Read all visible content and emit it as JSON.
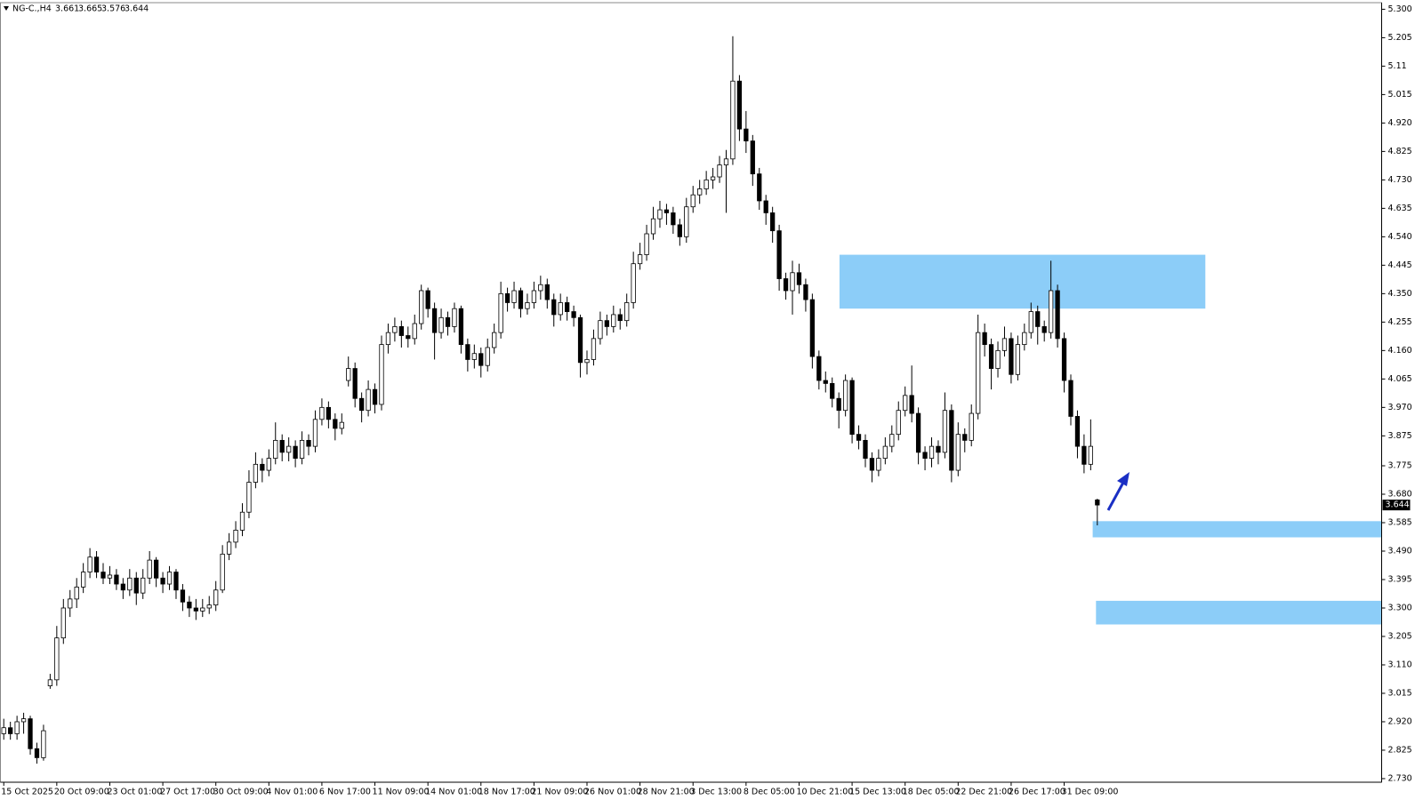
{
  "chart_data": {
    "type": "candlestick",
    "title": "NG-C.,H4",
    "up_color": "#ffffff",
    "down_color": "#000000",
    "outline_color": "#000000",
    "zone_color": "#8ccdf8",
    "xlim": [
      -0.5,
      207.9
    ],
    "ylim": [
      2.718,
      5.322
    ],
    "xticks": [
      {
        "value": 0,
        "label": "15 Oct 2025"
      },
      {
        "value": 8,
        "label": "20 Oct 09:00"
      },
      {
        "value": 16,
        "label": "23 Oct 01:00"
      },
      {
        "value": 24,
        "label": "27 Oct 17:00"
      },
      {
        "value": 32,
        "label": "30 Oct 09:00"
      },
      {
        "value": 40,
        "label": "4 Nov 01:00"
      },
      {
        "value": 48,
        "label": "6 Nov 17:00"
      },
      {
        "value": 56,
        "label": "11 Nov 09:00"
      },
      {
        "value": 64,
        "label": "14 Nov 01:00"
      },
      {
        "value": 72,
        "label": "18 Nov 17:00"
      },
      {
        "value": 80,
        "label": "21 Nov 09:00"
      },
      {
        "value": 88,
        "label": "26 Nov 01:00"
      },
      {
        "value": 96,
        "label": "28 Nov 21:00"
      },
      {
        "value": 104,
        "label": "3 Dec 13:00"
      },
      {
        "value": 112,
        "label": "8 Dec 05:00"
      },
      {
        "value": 120,
        "label": "10 Dec 21:00"
      },
      {
        "value": 128,
        "label": "15 Dec 13:00"
      },
      {
        "value": 136,
        "label": "18 Dec 05:00"
      },
      {
        "value": 144,
        "label": "22 Dec 21:00"
      },
      {
        "value": 152,
        "label": "26 Dec 17:00"
      },
      {
        "value": 160,
        "label": "31 Dec 09:00"
      }
    ],
    "yticks": [
      {
        "value": 5.3,
        "label": "5.300"
      },
      5.205,
      5.11,
      5.015,
      {
        "value": 4.92,
        "label": "4.920"
      },
      4.825,
      {
        "value": 4.73,
        "label": "4.730"
      },
      4.635,
      {
        "value": 4.54,
        "label": "4.540"
      },
      4.445,
      {
        "value": 4.35,
        "label": "4.350"
      },
      4.255,
      {
        "value": 4.16,
        "label": "4.160"
      },
      4.065,
      {
        "value": 3.97,
        "label": "3.970"
      },
      3.875,
      3.775,
      {
        "value": 3.68,
        "label": "3.680"
      },
      3.585,
      {
        "value": 3.49,
        "label": "3.490"
      },
      3.395,
      {
        "value": 3.3,
        "label": "3.300"
      },
      3.205,
      {
        "value": 3.11,
        "label": "3.110"
      },
      3.015,
      {
        "value": 2.92,
        "label": "2.920"
      },
      2.825,
      {
        "value": 2.73,
        "label": "2.730"
      }
    ],
    "zones": [
      {
        "x": [
          126.1,
          181.3
        ],
        "y": [
          4.3,
          4.48
        ]
      },
      {
        "x": [
          164.3,
          207.9
        ],
        "y": [
          3.536,
          3.59
        ]
      },
      {
        "x": [
          164.8,
          207.9
        ],
        "y": [
          3.245,
          3.324
        ]
      }
    ],
    "ohlc": [
      [
        2.88,
        2.93,
        2.86,
        2.9
      ],
      [
        2.9,
        2.92,
        2.86,
        2.88
      ],
      [
        2.88,
        2.94,
        2.86,
        2.92
      ],
      [
        2.92,
        2.95,
        2.88,
        2.93
      ],
      [
        2.93,
        2.94,
        2.81,
        2.83
      ],
      [
        2.83,
        2.85,
        2.78,
        2.8
      ],
      [
        2.8,
        2.91,
        2.79,
        2.89
      ],
      [
        3.04,
        3.08,
        3.03,
        3.06
      ],
      [
        3.06,
        3.24,
        3.04,
        3.2
      ],
      [
        3.2,
        3.33,
        3.18,
        3.3
      ],
      [
        3.3,
        3.36,
        3.27,
        3.33
      ],
      [
        3.33,
        3.4,
        3.3,
        3.37
      ],
      [
        3.37,
        3.45,
        3.35,
        3.42
      ],
      [
        3.42,
        3.5,
        3.4,
        3.47
      ],
      [
        3.47,
        3.49,
        3.4,
        3.42
      ],
      [
        3.42,
        3.45,
        3.38,
        3.4
      ],
      [
        3.4,
        3.44,
        3.38,
        3.41
      ],
      [
        3.41,
        3.43,
        3.36,
        3.38
      ],
      [
        3.38,
        3.4,
        3.33,
        3.36
      ],
      [
        3.36,
        3.43,
        3.34,
        3.4
      ],
      [
        3.4,
        3.42,
        3.31,
        3.35
      ],
      [
        3.35,
        3.43,
        3.33,
        3.4
      ],
      [
        3.4,
        3.49,
        3.38,
        3.46
      ],
      [
        3.46,
        3.47,
        3.37,
        3.4
      ],
      [
        3.4,
        3.42,
        3.35,
        3.38
      ],
      [
        3.38,
        3.44,
        3.36,
        3.42
      ],
      [
        3.42,
        3.43,
        3.33,
        3.36
      ],
      [
        3.36,
        3.38,
        3.29,
        3.32
      ],
      [
        3.32,
        3.34,
        3.27,
        3.3
      ],
      [
        3.3,
        3.33,
        3.26,
        3.29
      ],
      [
        3.29,
        3.33,
        3.27,
        3.3
      ],
      [
        3.3,
        3.34,
        3.28,
        3.31
      ],
      [
        3.31,
        3.39,
        3.29,
        3.36
      ],
      [
        3.36,
        3.51,
        3.35,
        3.48
      ],
      [
        3.48,
        3.55,
        3.46,
        3.52
      ],
      [
        3.52,
        3.59,
        3.5,
        3.56
      ],
      [
        3.56,
        3.65,
        3.54,
        3.62
      ],
      [
        3.62,
        3.76,
        3.6,
        3.72
      ],
      [
        3.72,
        3.82,
        3.7,
        3.78
      ],
      [
        3.78,
        3.8,
        3.72,
        3.76
      ],
      [
        3.76,
        3.83,
        3.74,
        3.8
      ],
      [
        3.8,
        3.92,
        3.78,
        3.86
      ],
      [
        3.86,
        3.88,
        3.79,
        3.82
      ],
      [
        3.82,
        3.87,
        3.79,
        3.84
      ],
      [
        3.84,
        3.86,
        3.77,
        3.8
      ],
      [
        3.8,
        3.89,
        3.78,
        3.86
      ],
      [
        3.86,
        3.88,
        3.81,
        3.84
      ],
      [
        3.84,
        3.96,
        3.82,
        3.93
      ],
      [
        3.93,
        4.0,
        3.91,
        3.97
      ],
      [
        3.97,
        3.99,
        3.9,
        3.93
      ],
      [
        3.93,
        3.95,
        3.86,
        3.9
      ],
      [
        3.9,
        3.95,
        3.88,
        3.92
      ],
      [
        4.06,
        4.14,
        4.04,
        4.1
      ],
      [
        4.1,
        4.12,
        3.97,
        4.0
      ],
      [
        4.0,
        4.02,
        3.92,
        3.96
      ],
      [
        3.96,
        4.06,
        3.94,
        4.03
      ],
      [
        4.03,
        4.05,
        3.95,
        3.98
      ],
      [
        3.98,
        4.21,
        3.96,
        4.18
      ],
      [
        4.18,
        4.25,
        4.15,
        4.22
      ],
      [
        4.22,
        4.27,
        4.19,
        4.24
      ],
      [
        4.24,
        4.26,
        4.17,
        4.21
      ],
      [
        4.21,
        4.24,
        4.17,
        4.2
      ],
      [
        4.2,
        4.28,
        4.18,
        4.25
      ],
      [
        4.25,
        4.38,
        4.23,
        4.36
      ],
      [
        4.36,
        4.37,
        4.27,
        4.3
      ],
      [
        4.3,
        4.32,
        4.13,
        4.22
      ],
      [
        4.22,
        4.3,
        4.2,
        4.27
      ],
      [
        4.27,
        4.29,
        4.21,
        4.24
      ],
      [
        4.24,
        4.32,
        4.22,
        4.3
      ],
      [
        4.3,
        4.31,
        4.15,
        4.18
      ],
      [
        4.18,
        4.2,
        4.09,
        4.13
      ],
      [
        4.13,
        4.18,
        4.1,
        4.15
      ],
      [
        4.15,
        4.17,
        4.07,
        4.11
      ],
      [
        4.11,
        4.2,
        4.09,
        4.17
      ],
      [
        4.17,
        4.25,
        4.15,
        4.22
      ],
      [
        4.22,
        4.39,
        4.2,
        4.35
      ],
      [
        4.35,
        4.37,
        4.29,
        4.32
      ],
      [
        4.32,
        4.39,
        4.3,
        4.36
      ],
      [
        4.36,
        4.37,
        4.27,
        4.3
      ],
      [
        4.3,
        4.35,
        4.28,
        4.32
      ],
      [
        4.32,
        4.39,
        4.3,
        4.36
      ],
      [
        4.36,
        4.41,
        4.33,
        4.38
      ],
      [
        4.38,
        4.4,
        4.3,
        4.33
      ],
      [
        4.33,
        4.35,
        4.24,
        4.28
      ],
      [
        4.28,
        4.35,
        4.26,
        4.32
      ],
      [
        4.32,
        4.34,
        4.26,
        4.29
      ],
      [
        4.29,
        4.31,
        4.24,
        4.27
      ],
      [
        4.27,
        4.28,
        4.07,
        4.12
      ],
      [
        4.12,
        4.16,
        4.08,
        4.13
      ],
      [
        4.13,
        4.23,
        4.11,
        4.2
      ],
      [
        4.2,
        4.29,
        4.18,
        4.26
      ],
      [
        4.26,
        4.28,
        4.21,
        4.24
      ],
      [
        4.24,
        4.31,
        4.22,
        4.28
      ],
      [
        4.28,
        4.3,
        4.23,
        4.26
      ],
      [
        4.26,
        4.35,
        4.24,
        4.32
      ],
      [
        4.32,
        4.49,
        4.3,
        4.45
      ],
      [
        4.45,
        4.52,
        4.43,
        4.48
      ],
      [
        4.48,
        4.58,
        4.46,
        4.55
      ],
      [
        4.55,
        4.64,
        4.53,
        4.6
      ],
      [
        4.6,
        4.66,
        4.57,
        4.63
      ],
      [
        4.63,
        4.65,
        4.58,
        4.62
      ],
      [
        4.62,
        4.64,
        4.55,
        4.58
      ],
      [
        4.58,
        4.6,
        4.51,
        4.54
      ],
      [
        4.54,
        4.67,
        4.52,
        4.64
      ],
      [
        4.64,
        4.71,
        4.62,
        4.68
      ],
      [
        4.68,
        4.73,
        4.65,
        4.7
      ],
      [
        4.7,
        4.76,
        4.68,
        4.73
      ],
      [
        4.73,
        4.77,
        4.7,
        4.74
      ],
      [
        4.74,
        4.81,
        4.72,
        4.78
      ],
      [
        4.78,
        4.83,
        4.62,
        4.8
      ],
      [
        4.8,
        5.21,
        4.78,
        5.06
      ],
      [
        5.06,
        5.08,
        4.86,
        4.9
      ],
      [
        4.9,
        4.96,
        4.82,
        4.86
      ],
      [
        4.86,
        4.88,
        4.71,
        4.75
      ],
      [
        4.75,
        4.77,
        4.63,
        4.66
      ],
      [
        4.66,
        4.68,
        4.58,
        4.62
      ],
      [
        4.62,
        4.64,
        4.52,
        4.56
      ],
      [
        4.56,
        4.58,
        4.36,
        4.4
      ],
      [
        4.4,
        4.42,
        4.33,
        4.36
      ],
      [
        4.36,
        4.46,
        4.28,
        4.42
      ],
      [
        4.42,
        4.45,
        4.35,
        4.38
      ],
      [
        4.38,
        4.4,
        4.29,
        4.33
      ],
      [
        4.33,
        4.35,
        4.1,
        4.14
      ],
      [
        4.14,
        4.16,
        4.03,
        4.06
      ],
      [
        4.06,
        4.09,
        4.02,
        4.05
      ],
      [
        4.05,
        4.07,
        3.97,
        4.0
      ],
      [
        4.0,
        4.02,
        3.9,
        3.96
      ],
      [
        3.96,
        4.08,
        3.94,
        4.06
      ],
      [
        4.06,
        4.07,
        3.85,
        3.88
      ],
      [
        3.88,
        3.91,
        3.83,
        3.86
      ],
      [
        3.86,
        3.88,
        3.77,
        3.8
      ],
      [
        3.8,
        3.82,
        3.72,
        3.76
      ],
      [
        3.76,
        3.83,
        3.74,
        3.8
      ],
      [
        3.8,
        3.87,
        3.78,
        3.84
      ],
      [
        3.84,
        3.91,
        3.82,
        3.88
      ],
      [
        3.88,
        3.99,
        3.86,
        3.96
      ],
      [
        3.96,
        4.04,
        3.94,
        4.01
      ],
      [
        4.01,
        4.11,
        3.92,
        3.95
      ],
      [
        3.95,
        3.97,
        3.78,
        3.82
      ],
      [
        3.82,
        3.84,
        3.76,
        3.8
      ],
      [
        3.8,
        3.87,
        3.77,
        3.84
      ],
      [
        3.84,
        3.86,
        3.78,
        3.82
      ],
      [
        3.82,
        4.02,
        3.8,
        3.96
      ],
      [
        3.96,
        3.98,
        3.72,
        3.76
      ],
      [
        3.76,
        3.92,
        3.74,
        3.88
      ],
      [
        3.88,
        3.9,
        3.82,
        3.86
      ],
      [
        3.86,
        3.98,
        3.84,
        3.95
      ],
      [
        3.95,
        4.28,
        3.93,
        4.22
      ],
      [
        4.22,
        4.25,
        4.14,
        4.18
      ],
      [
        4.18,
        4.2,
        4.03,
        4.1
      ],
      [
        4.1,
        4.19,
        4.07,
        4.16
      ],
      [
        4.16,
        4.24,
        4.14,
        4.2
      ],
      [
        4.2,
        4.22,
        4.05,
        4.08
      ],
      [
        4.08,
        4.21,
        4.06,
        4.18
      ],
      [
        4.18,
        4.25,
        4.16,
        4.22
      ],
      [
        4.22,
        4.32,
        4.2,
        4.29
      ],
      [
        4.29,
        4.31,
        4.18,
        4.24
      ],
      [
        4.24,
        4.26,
        4.19,
        4.22
      ],
      [
        4.22,
        4.46,
        4.2,
        4.36
      ],
      [
        4.36,
        4.38,
        4.17,
        4.2
      ],
      [
        4.2,
        4.22,
        4.02,
        4.06
      ],
      [
        4.06,
        4.08,
        3.91,
        3.94
      ],
      [
        3.94,
        3.96,
        3.8,
        3.84
      ],
      [
        3.84,
        3.88,
        3.75,
        3.78
      ],
      [
        3.78,
        3.93,
        3.76,
        3.84
      ],
      [
        3.661,
        3.665,
        3.576,
        3.644
      ]
    ]
  }
}
